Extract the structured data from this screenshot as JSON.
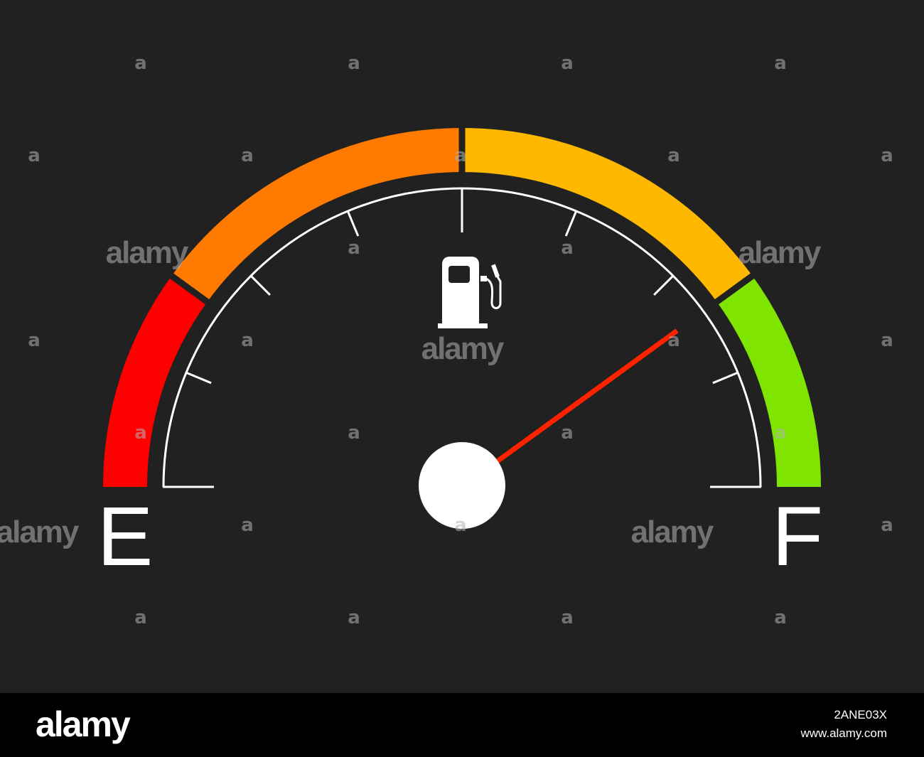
{
  "gauge": {
    "empty_label": "E",
    "full_label": "F",
    "level": 0.8,
    "icon": "fuel-pump-icon",
    "zones": [
      {
        "name": "red",
        "from": 0.0,
        "to": 0.2,
        "color": "#ff0000"
      },
      {
        "name": "orange",
        "from": 0.2,
        "to": 0.5,
        "color": "#ff7a00"
      },
      {
        "name": "yellow",
        "from": 0.5,
        "to": 0.8,
        "color": "#ffb800"
      },
      {
        "name": "green",
        "from": 0.8,
        "to": 1.0,
        "color": "#7ee400"
      }
    ],
    "colors": {
      "background": "#212121",
      "scale": "#ffffff",
      "needle": "#ff2200",
      "hub": "#ffffff"
    }
  },
  "watermark": {
    "small_mark": "a",
    "brand": "alamy"
  },
  "footer": {
    "logo": "alamy",
    "image_id": "2ANE03X",
    "url": "www.alamy.com"
  }
}
